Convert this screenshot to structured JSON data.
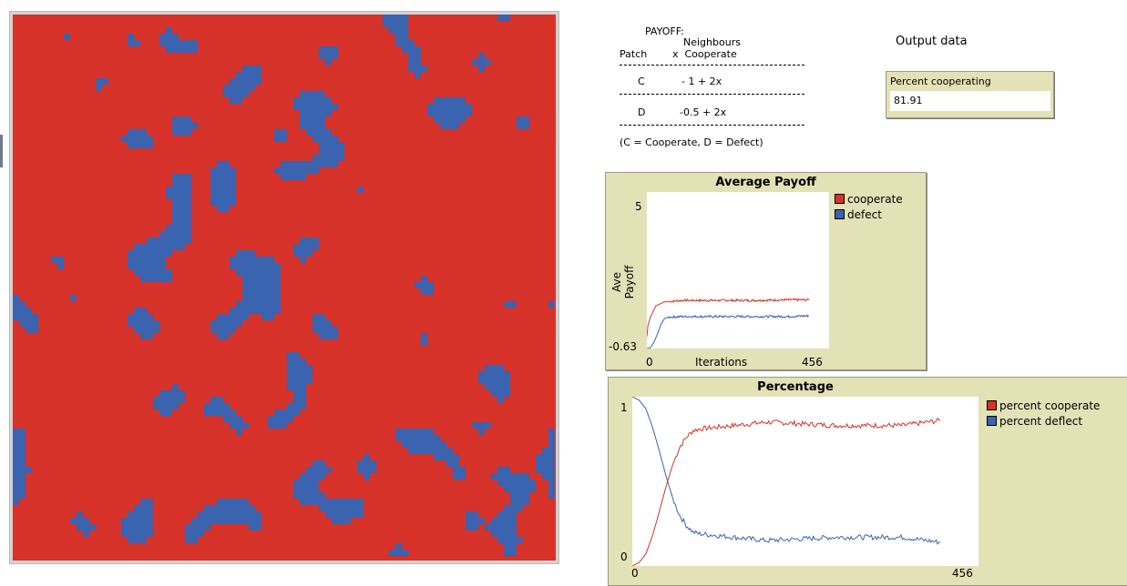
{
  "world": {
    "background_color": "#d63229",
    "patch_color": "#3a63b0"
  },
  "payoff": {
    "title": "PAYOFF:",
    "header_neighbours": "Neighbours",
    "header_patch": "Patch",
    "header_x_cooperate": "x  Cooperate",
    "row_c_label": "C",
    "row_c_formula": "- 1 + 2x",
    "row_d_label": "D",
    "row_d_formula": "-0.5 + 2x",
    "footnote": "(C = Cooperate, D = Defect)"
  },
  "output": {
    "heading": "Output data",
    "monitor_label": "Percent cooperating",
    "monitor_value": "81.91"
  },
  "plot_payoff": {
    "title": "Average Payoff",
    "ylabel": "Ave Payoff",
    "xlabel": "Iterations",
    "ymax_label": "5",
    "ymin_label": "-0.63",
    "xmin_label": "0",
    "xmax_label": "456",
    "legend": [
      {
        "label": "cooperate",
        "color": "#d63229"
      },
      {
        "label": "defect",
        "color": "#3a63b0"
      }
    ]
  },
  "plot_percentage": {
    "title": "Percentage",
    "ymax_label": "1",
    "ymin_label": "0",
    "xmin_label": "0",
    "xmax_label": "456",
    "legend": [
      {
        "label": "percent cooperate",
        "color": "#d63229"
      },
      {
        "label": "percent deflect",
        "color": "#3a63b0"
      }
    ]
  },
  "chart_data": [
    {
      "type": "line",
      "title": "Average Payoff",
      "xlabel": "Iterations",
      "ylabel": "Ave Payoff",
      "xlim": [
        0,
        456
      ],
      "ylim": [
        -0.63,
        5
      ],
      "series": [
        {
          "name": "cooperate",
          "x": [
            0,
            3,
            10,
            25,
            50,
            100,
            200,
            300,
            400,
            456
          ],
          "values": [
            -0.2,
            0.2,
            0.5,
            0.9,
            1.05,
            1.1,
            1.1,
            1.1,
            1.12,
            1.12
          ]
        },
        {
          "name": "defect",
          "x": [
            0,
            10,
            20,
            30,
            40,
            50,
            60,
            100,
            200,
            300,
            400,
            456
          ],
          "values": [
            -0.63,
            -0.6,
            -0.4,
            -0.1,
            0.25,
            0.45,
            0.5,
            0.52,
            0.52,
            0.52,
            0.52,
            0.55
          ]
        }
      ]
    },
    {
      "type": "line",
      "title": "Percentage",
      "xlim": [
        0,
        456
      ],
      "ylim": [
        0,
        1
      ],
      "series": [
        {
          "name": "percent cooperate",
          "x": [
            0,
            5,
            10,
            20,
            30,
            40,
            50,
            60,
            70,
            80,
            90,
            100,
            150,
            200,
            300,
            400,
            456
          ],
          "values": [
            0,
            0.01,
            0.02,
            0.07,
            0.18,
            0.32,
            0.47,
            0.6,
            0.7,
            0.76,
            0.8,
            0.81,
            0.83,
            0.85,
            0.83,
            0.83,
            0.86
          ]
        },
        {
          "name": "percent deflect",
          "x": [
            0,
            5,
            10,
            20,
            30,
            40,
            50,
            60,
            70,
            80,
            90,
            100,
            150,
            200,
            300,
            400,
            456
          ],
          "values": [
            1,
            0.99,
            0.98,
            0.93,
            0.82,
            0.68,
            0.53,
            0.4,
            0.3,
            0.24,
            0.2,
            0.19,
            0.17,
            0.15,
            0.17,
            0.17,
            0.14
          ]
        }
      ]
    }
  ]
}
